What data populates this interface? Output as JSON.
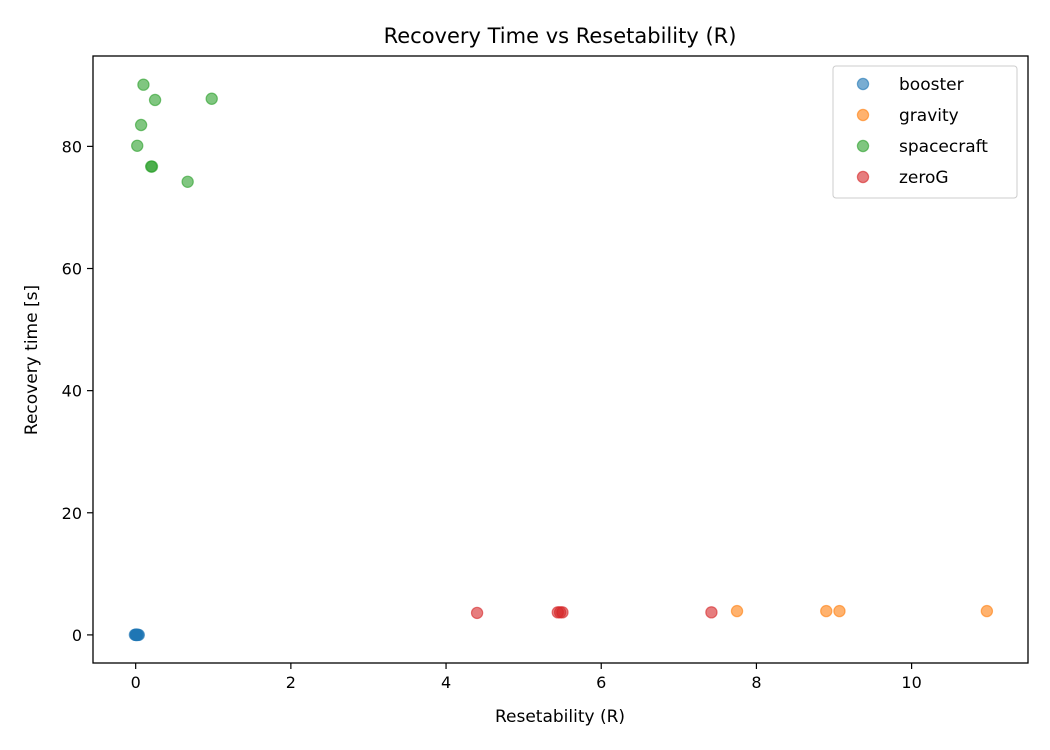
{
  "chart_data": {
    "type": "scatter",
    "title": "Recovery Time vs Resetability (R)",
    "xlabel": "Resetability (R)",
    "ylabel": "Recovery time [s]",
    "xlim": [
      -0.55,
      11.5
    ],
    "ylim": [
      -4.6,
      94.8
    ],
    "xticks": [
      0,
      2,
      4,
      6,
      8,
      10
    ],
    "yticks": [
      0,
      20,
      40,
      60,
      80
    ],
    "grid": false,
    "legend_position": "top-right",
    "series": [
      {
        "name": "booster",
        "color": "#1f77b4",
        "points": [
          {
            "x": 0.0,
            "y": 0.0
          },
          {
            "x": 0.01,
            "y": 0.05
          },
          {
            "x": 0.02,
            "y": 0.0
          },
          {
            "x": -0.01,
            "y": 0.02
          },
          {
            "x": 0.03,
            "y": 0.01
          },
          {
            "x": 0.0,
            "y": 0.03
          },
          {
            "x": 0.04,
            "y": 0.0
          },
          {
            "x": 0.01,
            "y": -0.02
          }
        ]
      },
      {
        "name": "gravity",
        "color": "#ff7f0e",
        "points": [
          {
            "x": 7.75,
            "y": 3.9
          },
          {
            "x": 8.9,
            "y": 3.9
          },
          {
            "x": 9.07,
            "y": 3.9
          },
          {
            "x": 10.97,
            "y": 3.9
          }
        ]
      },
      {
        "name": "spacecraft",
        "color": "#2ca02c",
        "points": [
          {
            "x": 0.1,
            "y": 90.1
          },
          {
            "x": 0.25,
            "y": 87.6
          },
          {
            "x": 0.98,
            "y": 87.8
          },
          {
            "x": 0.07,
            "y": 83.5
          },
          {
            "x": 0.02,
            "y": 80.1
          },
          {
            "x": 0.2,
            "y": 76.7
          },
          {
            "x": 0.21,
            "y": 76.7
          },
          {
            "x": 0.67,
            "y": 74.2
          }
        ]
      },
      {
        "name": "zeroG",
        "color": "#d62728",
        "points": [
          {
            "x": 4.4,
            "y": 3.6
          },
          {
            "x": 5.44,
            "y": 3.7
          },
          {
            "x": 5.47,
            "y": 3.7
          },
          {
            "x": 5.5,
            "y": 3.7
          },
          {
            "x": 7.42,
            "y": 3.7
          }
        ]
      }
    ]
  }
}
